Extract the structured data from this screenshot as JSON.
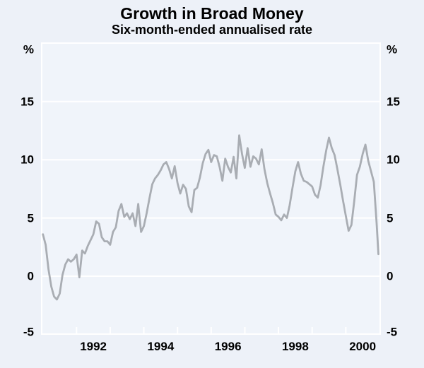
{
  "page": {
    "background_color": "#edf1f8",
    "plot_fill_color": "#f0f4fa",
    "grid_color": "#ffffff",
    "text_color": "#000000"
  },
  "header": {
    "title": "Growth in Broad Money",
    "subtitle": "Six-month-ended annualised rate"
  },
  "chart_data": {
    "type": "line",
    "title": "Growth in Broad Money",
    "subtitle": "Six-month-ended annualised rate",
    "unit": "%",
    "unit_label_left": "%",
    "unit_label_right": "%",
    "ylim": [
      -5,
      20
    ],
    "xlim": [
      1990.95,
      2001.0
    ],
    "ylabel": "",
    "xlabel": "",
    "ytick_labels": [
      "15",
      "10",
      "5",
      "0",
      "-5"
    ],
    "ytick_values": [
      15,
      10,
      5,
      0,
      -5
    ],
    "gridline_values": [
      15,
      10,
      5,
      0
    ],
    "grid_on": true,
    "xtick_years": [
      1992,
      1993,
      1994,
      1995,
      1996,
      1997,
      1998,
      1999,
      2000
    ],
    "xtick_labels": [
      {
        "label": "1992",
        "center_year": 1992.5
      },
      {
        "label": "1994",
        "center_year": 1994.5
      },
      {
        "label": "1996",
        "center_year": 1996.5
      },
      {
        "label": "1998",
        "center_year": 1998.5
      },
      {
        "label": "2000",
        "center_year": 2000.5
      }
    ],
    "legend_position": "none",
    "series": [
      {
        "name": "Broad money growth (six-month-ended annualised rate)",
        "color": "#a9adb3",
        "points": [
          [
            1991.0,
            3.6
          ],
          [
            1991.083,
            2.7
          ],
          [
            1991.167,
            0.6
          ],
          [
            1991.25,
            -0.9
          ],
          [
            1991.333,
            -1.75
          ],
          [
            1991.417,
            -2.0
          ],
          [
            1991.5,
            -1.5
          ],
          [
            1991.583,
            0.1
          ],
          [
            1991.667,
            1.0
          ],
          [
            1991.75,
            1.45
          ],
          [
            1991.833,
            1.25
          ],
          [
            1991.917,
            1.45
          ],
          [
            1992.0,
            1.85
          ],
          [
            1992.083,
            -0.1
          ],
          [
            1992.167,
            2.2
          ],
          [
            1992.25,
            1.95
          ],
          [
            1992.333,
            2.6
          ],
          [
            1992.417,
            3.1
          ],
          [
            1992.5,
            3.6
          ],
          [
            1992.583,
            4.7
          ],
          [
            1992.667,
            4.5
          ],
          [
            1992.75,
            3.35
          ],
          [
            1992.833,
            3.0
          ],
          [
            1992.917,
            3.0
          ],
          [
            1993.0,
            2.7
          ],
          [
            1993.083,
            3.8
          ],
          [
            1993.167,
            4.2
          ],
          [
            1993.25,
            5.6
          ],
          [
            1993.333,
            6.2
          ],
          [
            1993.417,
            5.1
          ],
          [
            1993.5,
            5.4
          ],
          [
            1993.583,
            4.9
          ],
          [
            1993.667,
            5.4
          ],
          [
            1993.75,
            4.3
          ],
          [
            1993.833,
            6.2
          ],
          [
            1993.917,
            3.8
          ],
          [
            1994.0,
            4.3
          ],
          [
            1994.083,
            5.4
          ],
          [
            1994.167,
            6.7
          ],
          [
            1994.25,
            7.9
          ],
          [
            1994.333,
            8.4
          ],
          [
            1994.417,
            8.7
          ],
          [
            1994.5,
            9.1
          ],
          [
            1994.583,
            9.6
          ],
          [
            1994.667,
            9.8
          ],
          [
            1994.75,
            9.2
          ],
          [
            1994.833,
            8.4
          ],
          [
            1994.917,
            9.45
          ],
          [
            1995.0,
            8.0
          ],
          [
            1995.083,
            7.1
          ],
          [
            1995.167,
            7.85
          ],
          [
            1995.25,
            7.5
          ],
          [
            1995.333,
            6.0
          ],
          [
            1995.417,
            5.5
          ],
          [
            1995.5,
            7.4
          ],
          [
            1995.583,
            7.6
          ],
          [
            1995.667,
            8.5
          ],
          [
            1995.75,
            9.7
          ],
          [
            1995.833,
            10.5
          ],
          [
            1995.917,
            10.85
          ],
          [
            1996.0,
            9.8
          ],
          [
            1996.083,
            10.4
          ],
          [
            1996.167,
            10.3
          ],
          [
            1996.25,
            9.4
          ],
          [
            1996.333,
            8.2
          ],
          [
            1996.417,
            10.1
          ],
          [
            1996.5,
            9.4
          ],
          [
            1996.583,
            8.9
          ],
          [
            1996.667,
            10.25
          ],
          [
            1996.75,
            8.4
          ],
          [
            1996.833,
            12.1
          ],
          [
            1996.917,
            10.5
          ],
          [
            1997.0,
            9.3
          ],
          [
            1997.083,
            11.0
          ],
          [
            1997.167,
            9.4
          ],
          [
            1997.25,
            10.3
          ],
          [
            1997.333,
            10.1
          ],
          [
            1997.417,
            9.6
          ],
          [
            1997.5,
            10.9
          ],
          [
            1997.583,
            9.2
          ],
          [
            1997.667,
            8.0
          ],
          [
            1997.75,
            7.1
          ],
          [
            1997.833,
            6.3
          ],
          [
            1997.917,
            5.3
          ],
          [
            1998.0,
            5.1
          ],
          [
            1998.083,
            4.8
          ],
          [
            1998.167,
            5.3
          ],
          [
            1998.25,
            5.0
          ],
          [
            1998.333,
            6.1
          ],
          [
            1998.417,
            7.6
          ],
          [
            1998.5,
            9.0
          ],
          [
            1998.583,
            9.8
          ],
          [
            1998.667,
            8.8
          ],
          [
            1998.75,
            8.2
          ],
          [
            1998.833,
            8.1
          ],
          [
            1998.917,
            7.9
          ],
          [
            1999.0,
            7.7
          ],
          [
            1999.083,
            7.0
          ],
          [
            1999.167,
            6.75
          ],
          [
            1999.25,
            7.8
          ],
          [
            1999.333,
            9.4
          ],
          [
            1999.417,
            10.8
          ],
          [
            1999.5,
            11.9
          ],
          [
            1999.583,
            11.0
          ],
          [
            1999.667,
            10.4
          ],
          [
            1999.75,
            9.2
          ],
          [
            1999.833,
            7.9
          ],
          [
            1999.917,
            6.5
          ],
          [
            2000.0,
            5.2
          ],
          [
            2000.083,
            3.9
          ],
          [
            2000.167,
            4.4
          ],
          [
            2000.25,
            6.4
          ],
          [
            2000.333,
            8.7
          ],
          [
            2000.417,
            9.4
          ],
          [
            2000.5,
            10.5
          ],
          [
            2000.583,
            11.3
          ],
          [
            2000.667,
            9.9
          ],
          [
            2000.75,
            9.0
          ],
          [
            2000.833,
            8.1
          ],
          [
            2000.917,
            4.5
          ],
          [
            2000.97,
            1.9
          ]
        ]
      }
    ]
  }
}
